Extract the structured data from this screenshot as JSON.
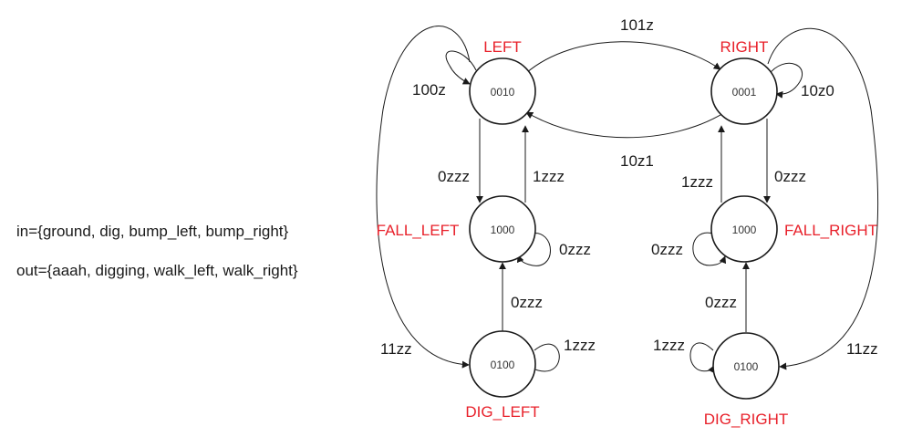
{
  "legend": {
    "inputs": "in={ground, dig, bump_left, bump_right}",
    "outputs": "out={aaah, digging, walk_left, walk_right}"
  },
  "states": {
    "left": {
      "name": "LEFT",
      "code": "0010"
    },
    "right": {
      "name": "RIGHT",
      "code": "0001"
    },
    "fall_left": {
      "name": "FALL_LEFT",
      "code": "1000"
    },
    "fall_right": {
      "name": "FALL_RIGHT",
      "code": "1000"
    },
    "dig_left": {
      "name": "DIG_LEFT",
      "code": "0100"
    },
    "dig_right": {
      "name": "DIG_RIGHT",
      "code": "0100"
    }
  },
  "transitions": {
    "left_to_right": "101z",
    "right_to_left": "10z1",
    "left_self": "100z",
    "right_self": "10z0",
    "left_to_fall_left": "0zzz",
    "fall_left_to_left": "1zzz",
    "fall_left_self": "0zzz",
    "right_to_fall_right": "0zzz",
    "fall_right_to_right": "1zzz",
    "fall_right_self": "0zzz",
    "dig_left_to_fall_left": "0zzz",
    "dig_left_self": "1zzz",
    "dig_right_to_fall_right": "0zzz",
    "dig_right_self": "1zzz",
    "left_to_dig_left": "11zz",
    "right_to_dig_right": "11zz"
  }
}
